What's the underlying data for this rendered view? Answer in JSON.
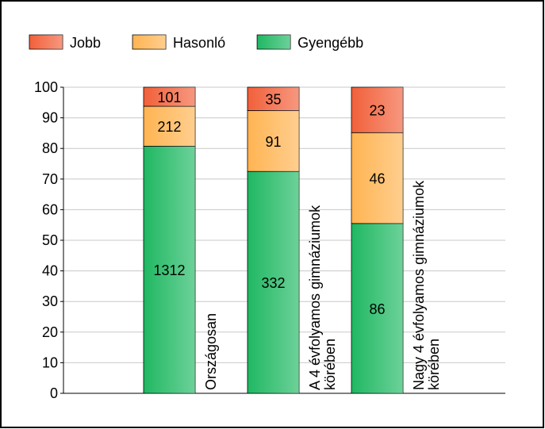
{
  "chart_data": {
    "type": "bar",
    "stacking": "percent",
    "categories": [
      "Országosan",
      "A 4 évfolyamos gimnáziumok körében",
      "Nagy 4 évfolyamos gimnáziumok körében"
    ],
    "series": [
      {
        "name": "Gyengébb",
        "color": "#1fb862",
        "values": [
          1312,
          332,
          86
        ]
      },
      {
        "name": "Hasonló",
        "color": "#ffb452",
        "values": [
          212,
          91,
          46
        ]
      },
      {
        "name": "Jobb",
        "color": "#f2603a",
        "values": [
          101,
          35,
          23
        ]
      }
    ],
    "legend_order": [
      2,
      1,
      0
    ],
    "ylim": [
      0,
      100
    ],
    "yticks": [
      0,
      10,
      20,
      30,
      40,
      50,
      60,
      70,
      80,
      90,
      100
    ],
    "grid": true
  }
}
